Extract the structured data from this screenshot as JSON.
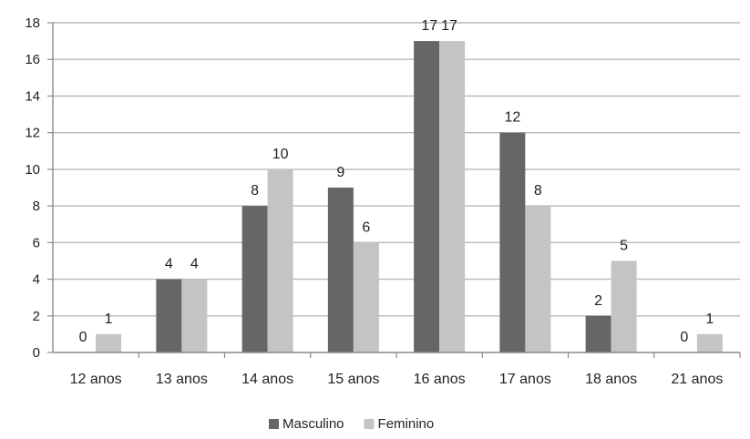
{
  "chart_data": {
    "type": "bar",
    "categories": [
      "12 anos",
      "13 anos",
      "14 anos",
      "15 anos",
      "16 anos",
      "17 anos",
      "18 anos",
      "21 anos"
    ],
    "series": [
      {
        "name": "Masculino",
        "color": "#666666",
        "values": [
          0,
          4,
          8,
          9,
          17,
          12,
          2,
          0
        ]
      },
      {
        "name": "Feminino",
        "color": "#c4c4c4",
        "values": [
          1,
          4,
          10,
          6,
          17,
          8,
          5,
          1
        ]
      }
    ],
    "ylim": [
      0,
      18
    ],
    "yticks": [
      0,
      2,
      4,
      6,
      8,
      10,
      12,
      14,
      16,
      18
    ],
    "grid": true,
    "legend": "bottom"
  }
}
